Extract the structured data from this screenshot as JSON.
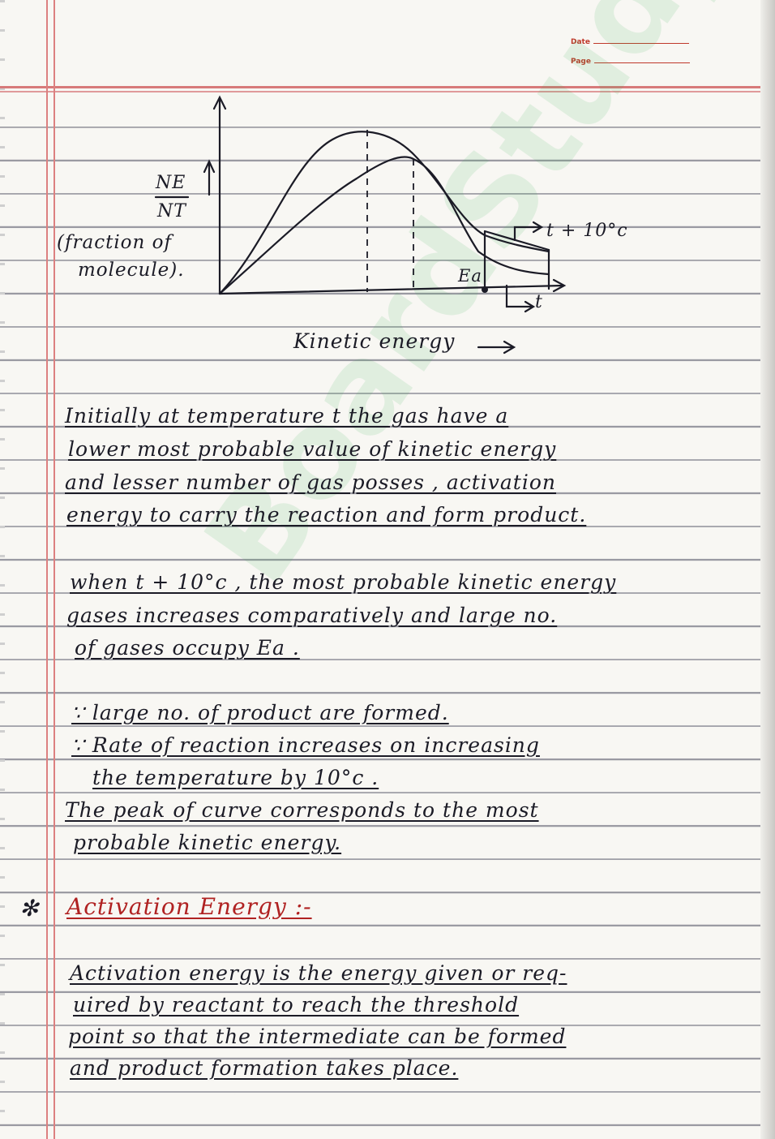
{
  "header": {
    "date_label": "Date",
    "page_label": "Page"
  },
  "watermark": "BoardStudy",
  "diagram": {
    "y_numerator": "NE",
    "y_denominator": "NT",
    "y_caption_1": "(fraction of",
    "y_caption_2": "molecule).",
    "ea_label": "Ea",
    "t_plus_10_label": "t + 10°c",
    "t_label": "t",
    "x_label": "Kinetic energy"
  },
  "paragraphs": [
    {
      "lines": [
        "Initially at temperature t the gas have a",
        "lower most probable value of kinetic energy",
        "and lesser number of gas posses , activation",
        "energy to carry the reaction and form product."
      ]
    },
    {
      "lines": [
        "when t + 10°c , the most probable kinetic energy",
        "gases increases comparatively and large no.",
        "of gases occupy Ea ."
      ]
    }
  ],
  "points": [
    "∵ large no. of product are formed.",
    "∵ Rate of reaction increases on increasing",
    "the temperature by 10°c .",
    "The peak of curve corresponds to the most",
    "probable kinetic energy."
  ],
  "section": {
    "bullet": "✻",
    "heading": "Activation Energy :-",
    "definition": [
      "Activation energy is the energy given or req-",
      "uired by reactant to reach the threshold",
      "point so that the intermediate can be formed",
      "and product formation takes place."
    ]
  }
}
